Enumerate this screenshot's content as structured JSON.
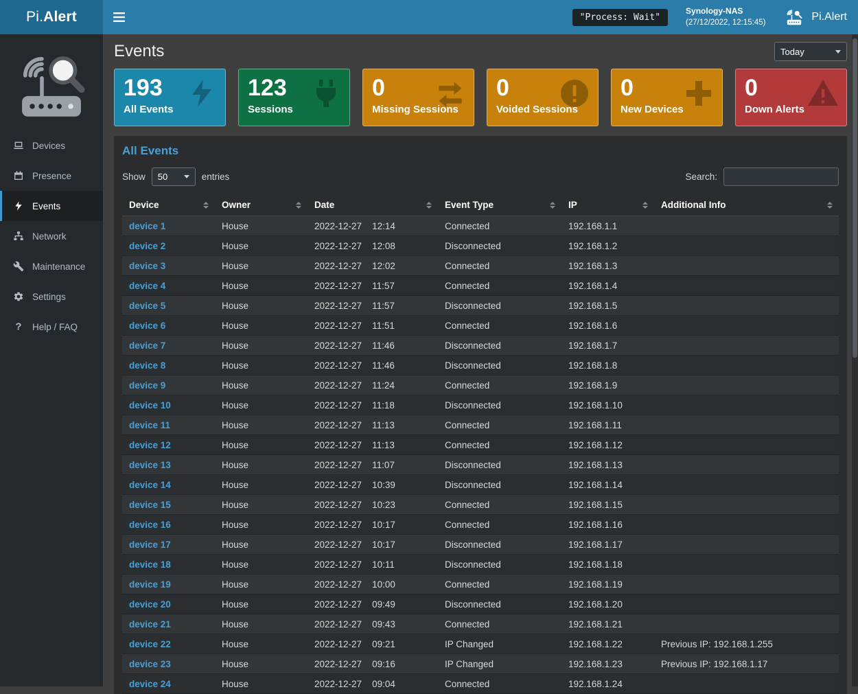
{
  "topbar": {
    "brand_prefix": "Pi.",
    "brand_bold": "Alert",
    "process_badge": "\"Process: Wait\"",
    "host_name": "Synology-NAS",
    "host_time": "(27/12/2022, 12:15:45)",
    "app_name": "Pi.Alert"
  },
  "sidebar": {
    "items": [
      {
        "label": "Devices",
        "icon": "laptop-icon",
        "active": false
      },
      {
        "label": "Presence",
        "icon": "calendar-icon",
        "active": false
      },
      {
        "label": "Events",
        "icon": "bolt-icon",
        "active": true
      },
      {
        "label": "Network",
        "icon": "network-icon",
        "active": false
      },
      {
        "label": "Maintenance",
        "icon": "wrench-icon",
        "active": false
      },
      {
        "label": "Settings",
        "icon": "gear-icon",
        "active": false
      },
      {
        "label": "Help / FAQ",
        "icon": "question-icon",
        "active": false
      }
    ]
  },
  "page": {
    "title": "Events",
    "period_select": {
      "value": "Today"
    }
  },
  "summary_cards": [
    {
      "value": "193",
      "label": "All Events",
      "color": "#1b87ab",
      "icon": "bolt-icon"
    },
    {
      "value": "123",
      "label": "Sessions",
      "color": "#0d7144",
      "icon": "plug-icon"
    },
    {
      "value": "0",
      "label": "Missing Sessions",
      "color": "#c8820b",
      "icon": "exchange-icon"
    },
    {
      "value": "0",
      "label": "Voided Sessions",
      "color": "#c8820b",
      "icon": "exclamation-icon"
    },
    {
      "value": "0",
      "label": "New Devices",
      "color": "#c8820b",
      "icon": "plus-icon"
    },
    {
      "value": "0",
      "label": "Down Alerts",
      "color": "#b23a3a",
      "icon": "warning-icon"
    }
  ],
  "events_panel": {
    "title": "All Events",
    "show_label": "Show",
    "entries_label": "entries",
    "page_length": "50",
    "search_label": "Search:",
    "search_value": "",
    "table": {
      "columns": [
        "Device",
        "Owner",
        "Date",
        "Event Type",
        "IP",
        "Additional Info"
      ],
      "rows": [
        {
          "device": "device 1",
          "owner": "House",
          "date": "2022-12-27",
          "time": "12:14",
          "event": "Connected",
          "ip": "192.168.1.1",
          "info": ""
        },
        {
          "device": "device 2",
          "owner": "House",
          "date": "2022-12-27",
          "time": "12:08",
          "event": "Disconnected",
          "ip": "192.168.1.2",
          "info": ""
        },
        {
          "device": "device 3",
          "owner": "House",
          "date": "2022-12-27",
          "time": "12:02",
          "event": "Connected",
          "ip": "192.168.1.3",
          "info": ""
        },
        {
          "device": "device 4",
          "owner": "House",
          "date": "2022-12-27",
          "time": "11:57",
          "event": "Connected",
          "ip": "192.168.1.4",
          "info": ""
        },
        {
          "device": "device 5",
          "owner": "House",
          "date": "2022-12-27",
          "time": "11:57",
          "event": "Disconnected",
          "ip": "192.168.1.5",
          "info": ""
        },
        {
          "device": "device 6",
          "owner": "House",
          "date": "2022-12-27",
          "time": "11:51",
          "event": "Connected",
          "ip": "192.168.1.6",
          "info": ""
        },
        {
          "device": "device 7",
          "owner": "House",
          "date": "2022-12-27",
          "time": "11:46",
          "event": "Disconnected",
          "ip": "192.168.1.7",
          "info": ""
        },
        {
          "device": "device 8",
          "owner": "House",
          "date": "2022-12-27",
          "time": "11:46",
          "event": "Disconnected",
          "ip": "192.168.1.8",
          "info": ""
        },
        {
          "device": "device 9",
          "owner": "House",
          "date": "2022-12-27",
          "time": "11:24",
          "event": "Connected",
          "ip": "192.168.1.9",
          "info": ""
        },
        {
          "device": "device 10",
          "owner": "House",
          "date": "2022-12-27",
          "time": "11:18",
          "event": "Disconnected",
          "ip": "192.168.1.10",
          "info": ""
        },
        {
          "device": "device 11",
          "owner": "House",
          "date": "2022-12-27",
          "time": "11:13",
          "event": "Connected",
          "ip": "192.168.1.11",
          "info": ""
        },
        {
          "device": "device 12",
          "owner": "House",
          "date": "2022-12-27",
          "time": "11:13",
          "event": "Connected",
          "ip": "192.168.1.12",
          "info": ""
        },
        {
          "device": "device 13",
          "owner": "House",
          "date": "2022-12-27",
          "time": "11:07",
          "event": "Disconnected",
          "ip": "192.168.1.13",
          "info": ""
        },
        {
          "device": "device 14",
          "owner": "House",
          "date": "2022-12-27",
          "time": "10:39",
          "event": "Disconnected",
          "ip": "192.168.1.14",
          "info": ""
        },
        {
          "device": "device 15",
          "owner": "House",
          "date": "2022-12-27",
          "time": "10:23",
          "event": "Connected",
          "ip": "192.168.1.15",
          "info": ""
        },
        {
          "device": "device 16",
          "owner": "House",
          "date": "2022-12-27",
          "time": "10:17",
          "event": "Connected",
          "ip": "192.168.1.16",
          "info": ""
        },
        {
          "device": "device 17",
          "owner": "House",
          "date": "2022-12-27",
          "time": "10:17",
          "event": "Disconnected",
          "ip": "192.168.1.17",
          "info": ""
        },
        {
          "device": "device 18",
          "owner": "House",
          "date": "2022-12-27",
          "time": "10:11",
          "event": "Disconnected",
          "ip": "192.168.1.18",
          "info": ""
        },
        {
          "device": "device 19",
          "owner": "House",
          "date": "2022-12-27",
          "time": "10:00",
          "event": "Connected",
          "ip": "192.168.1.19",
          "info": ""
        },
        {
          "device": "device 20",
          "owner": "House",
          "date": "2022-12-27",
          "time": "09:49",
          "event": "Disconnected",
          "ip": "192.168.1.20",
          "info": ""
        },
        {
          "device": "device 21",
          "owner": "House",
          "date": "2022-12-27",
          "time": "09:43",
          "event": "Connected",
          "ip": "192.168.1.21",
          "info": ""
        },
        {
          "device": "device 22",
          "owner": "House",
          "date": "2022-12-27",
          "time": "09:21",
          "event": "IP Changed",
          "ip": "192.168.1.22",
          "info": "Previous IP: 192.168.1.255"
        },
        {
          "device": "device 23",
          "owner": "House",
          "date": "2022-12-27",
          "time": "09:16",
          "event": "IP Changed",
          "ip": "192.168.1.23",
          "info": "Previous IP: 192.168.1.17"
        },
        {
          "device": "device 24",
          "owner": "House",
          "date": "2022-12-27",
          "time": "09:04",
          "event": "Connected",
          "ip": "192.168.1.24",
          "info": ""
        }
      ]
    }
  }
}
